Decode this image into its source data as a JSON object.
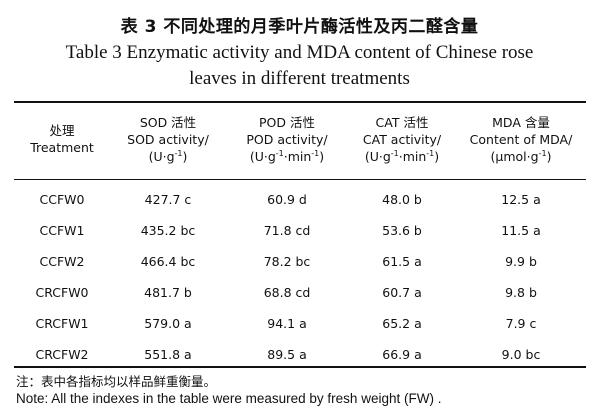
{
  "title_cn": "表 3   不同处理的月季叶片酶活性及丙二醛含量",
  "title_en_line1": "Table 3    Enzymatic activity and MDA content of Chinese rose",
  "title_en_line2": "leaves in different treatments",
  "headers": {
    "treatment_cn": "处理",
    "treatment_en": "Treatment",
    "sod_cn": "SOD 活性",
    "sod_en": "SOD activity/",
    "sod_unit_a": "(U·g",
    "sod_unit_sup1": "-1",
    "sod_unit_b": ")",
    "pod_cn": "POD 活性",
    "pod_en": "POD activity/",
    "pod_unit_a": "(U·g",
    "pod_unit_sup1": "-1",
    "pod_unit_b": "·min",
    "pod_unit_sup2": "-1",
    "pod_unit_c": ")",
    "cat_cn": "CAT 活性",
    "cat_en": "CAT activity/",
    "cat_unit_a": "(U·g",
    "cat_unit_sup1": "-1",
    "cat_unit_b": "·min",
    "cat_unit_sup2": "-1",
    "cat_unit_c": ")",
    "mda_cn": "MDA 含量",
    "mda_en": "Content of MDA/",
    "mda_unit_a": "(μmol·g",
    "mda_unit_sup1": "-1",
    "mda_unit_b": ")"
  },
  "rows": [
    {
      "treatment": "CCFW0",
      "sod": "427.7 c",
      "pod": "60.9 d",
      "cat": "48.0 b",
      "mda": "12.5 a"
    },
    {
      "treatment": "CCFW1",
      "sod": "435.2 bc",
      "pod": "71.8 cd",
      "cat": "53.6 b",
      "mda": "11.5 a"
    },
    {
      "treatment": "CCFW2",
      "sod": "466.4 bc",
      "pod": "78.2 bc",
      "cat": "61.5 a",
      "mda": "9.9 b"
    },
    {
      "treatment": "CRCFW0",
      "sod": "481.7 b",
      "pod": "68.8 cd",
      "cat": "60.7 a",
      "mda": "9.8 b"
    },
    {
      "treatment": "CRCFW1",
      "sod": "579.0 a",
      "pod": "94.1 a",
      "cat": "65.2 a",
      "mda": "7.9 c"
    },
    {
      "treatment": "CRCFW2",
      "sod": "551.8 a",
      "pod": "89.5 a",
      "cat": "66.9 a",
      "mda": "9.0 bc"
    }
  ],
  "note_cn": "注：表中各指标均以样品鲜重衡量。",
  "note_en": "Note: All the indexes in the table were measured by fresh weight (FW) ."
}
